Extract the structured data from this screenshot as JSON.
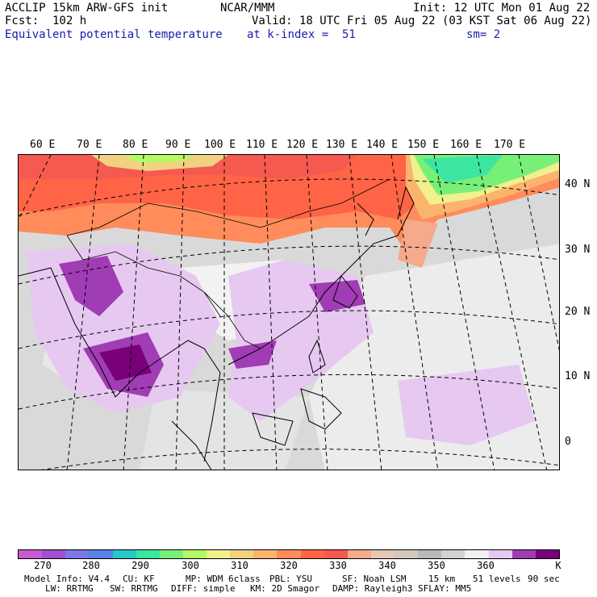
{
  "header": {
    "model_line": "ACCLIP 15km ARW-GFS init",
    "forecast": "Fcst:  102 h",
    "variable": "Equivalent potential temperature",
    "org": "NCAR/MMM",
    "valid": "Valid: 18 UTC Fri 05 Aug 22 (03 KST Sat 06 Aug 22)",
    "level": "at k-index =  51",
    "init": "Init: 12 UTC Mon 01 Aug 22",
    "smoothing": "sm= 2"
  },
  "map": {
    "lon_labels": [
      "60 E",
      "70 E",
      "80 E",
      "90 E",
      "100 E",
      "110 E",
      "120 E",
      "130 E",
      "140 E",
      "150 E",
      "160 E",
      "170 E"
    ],
    "lat_labels": [
      "40 N",
      "30 N",
      "20 N",
      "10 N",
      "0"
    ],
    "background_color": "#d9d9d9"
  },
  "colorbar": {
    "colors": [
      "#c85ad2",
      "#a050d2",
      "#7d78e6",
      "#5a82e6",
      "#28c8c8",
      "#3ce6a0",
      "#78f078",
      "#b4fa64",
      "#f0f08c",
      "#f0d282",
      "#fab46e",
      "#ff8c5a",
      "#ff6446",
      "#f55a50",
      "#f5aa8c",
      "#e6c8b4",
      "#d2c8be",
      "#b9b9b9",
      "#d2d2d2",
      "#f0f0f0",
      "#e6c8f0",
      "#a03cb4",
      "#780078"
    ],
    "labels": [
      "270",
      "280",
      "290",
      "300",
      "310",
      "320",
      "330",
      "340",
      "350",
      "360"
    ],
    "unit": "K"
  },
  "footer": {
    "model_info": "Model Info: V4.4",
    "cu": "CU: KF",
    "mp": "MP: WDM 6class",
    "pbl": "PBL: YSU",
    "sf": "SF: Noah LSM",
    "res": "15 km",
    "levels": "51 levels",
    "dt": "90 sec",
    "lw": "LW: RRTMG",
    "sw": "SW: RRTMG",
    "diff": "DIFF: simple",
    "km": "KM: 2D Smagor",
    "damp": "DAMP: Rayleigh3",
    "sflay": "SFLAY: MM5"
  }
}
